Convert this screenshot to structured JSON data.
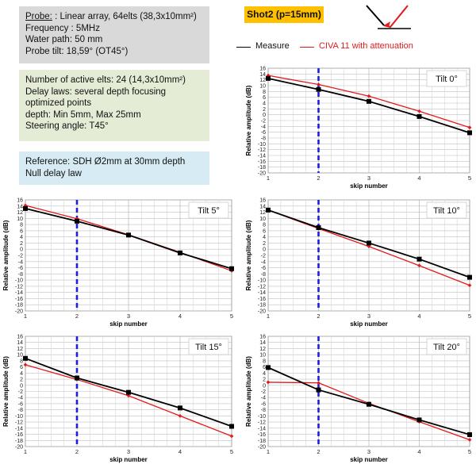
{
  "probe_box": {
    "probe_label": "Probe:",
    "probe_value": ": Linear array, 64elts (38,3x10mm²)",
    "frequency": "Frequency : 5MHz",
    "water_path": "Water path: 50 mm",
    "probe_tilt": "Probe tilt: 18,59° (OT45°)"
  },
  "laws_box": {
    "active_elts": "Number of active elts: 24 (14,3x10mm²)",
    "delay_laws_1": "Delay laws: several depth focusing",
    "delay_laws_2": "optimized points",
    "depth": "depth: Min 5mm, Max 25mm",
    "steering": "Steering angle: T45°"
  },
  "ref_box": {
    "line1": "Reference: SDH Ø2mm at 30mm depth",
    "line2": "Null delay law"
  },
  "shot_badge": "Shot2 (p=15mm)",
  "legend": {
    "measure": "Measure",
    "civa": "CIVA 11 with attenuation",
    "measure_color": "#000000",
    "civa_color": "#e31a1c"
  },
  "colors": {
    "measure": "#000000",
    "civa": "#e31a1c",
    "reference_line": "#1f1fd6",
    "grid": "#bfbfbf"
  },
  "chart_data": [
    {
      "type": "line",
      "title": "Tilt 0°",
      "xlabel": "skip number",
      "ylabel": "Relative amplitude (dB)",
      "x": [
        1,
        2,
        3,
        4,
        5
      ],
      "xlim": [
        1,
        5
      ],
      "ylim": [
        -20,
        16
      ],
      "yticks_step": 2,
      "vline_x": 2,
      "series": [
        {
          "name": "Measure",
          "values": [
            12.5,
            8.7,
            4.6,
            -0.6,
            -6.2
          ]
        },
        {
          "name": "CIVA 11 with attenuation",
          "values": [
            13.5,
            10.4,
            6.4,
            1.2,
            -4.4
          ]
        }
      ]
    },
    {
      "type": "line",
      "title": "Tilt 5°",
      "xlabel": "skip number",
      "ylabel": "Relative amplitude (dB)",
      "x": [
        1,
        2,
        3,
        4,
        5
      ],
      "xlim": [
        1,
        5
      ],
      "ylim": [
        -20,
        16
      ],
      "yticks_step": 2,
      "vline_x": 2,
      "series": [
        {
          "name": "Measure",
          "values": [
            13.2,
            9.1,
            4.6,
            -1.2,
            -6.3
          ]
        },
        {
          "name": "CIVA 11 with attenuation",
          "values": [
            14.2,
            9.9,
            4.7,
            -1.0,
            -7.0
          ]
        }
      ]
    },
    {
      "type": "line",
      "title": "Tilt 10°",
      "xlabel": "skip number",
      "ylabel": "Relative amplitude (dB)",
      "x": [
        1,
        2,
        3,
        4,
        5
      ],
      "xlim": [
        1,
        5
      ],
      "ylim": [
        -20,
        16
      ],
      "yticks_step": 2,
      "vline_x": 2,
      "series": [
        {
          "name": "Measure",
          "values": [
            12.7,
            7.0,
            2.0,
            -3.2,
            -9.1
          ]
        },
        {
          "name": "CIVA 11 with attenuation",
          "values": [
            12.7,
            6.7,
            0.9,
            -5.3,
            -11.7
          ]
        }
      ]
    },
    {
      "type": "line",
      "title": "Tilt 15°",
      "xlabel": "skip number",
      "ylabel": "Relative amplitude (dB)",
      "x": [
        1,
        2,
        3,
        4,
        5
      ],
      "xlim": [
        1,
        5
      ],
      "ylim": [
        -20,
        16
      ],
      "yticks_step": 2,
      "vline_x": 2,
      "series": [
        {
          "name": "Measure",
          "values": [
            8.8,
            2.4,
            -2.3,
            -7.4,
            -13.4
          ]
        },
        {
          "name": "CIVA 11 with attenuation",
          "values": [
            6.7,
            1.9,
            -3.4,
            -10.0,
            -16.6
          ]
        }
      ]
    },
    {
      "type": "line",
      "title": "Tilt 20°",
      "xlabel": "skip number",
      "ylabel": "Relative amplitude (dB)",
      "x": [
        1,
        2,
        3,
        4,
        5
      ],
      "xlim": [
        1,
        5
      ],
      "ylim": [
        -20,
        16
      ],
      "yticks_step": 2,
      "vline_x": 2,
      "series": [
        {
          "name": "Measure",
          "values": [
            5.8,
            -1.5,
            -6.2,
            -11.3,
            -16.1
          ]
        },
        {
          "name": "CIVA 11 with attenuation",
          "values": [
            1.0,
            0.8,
            -5.9,
            -11.9,
            -17.8
          ]
        }
      ]
    }
  ]
}
